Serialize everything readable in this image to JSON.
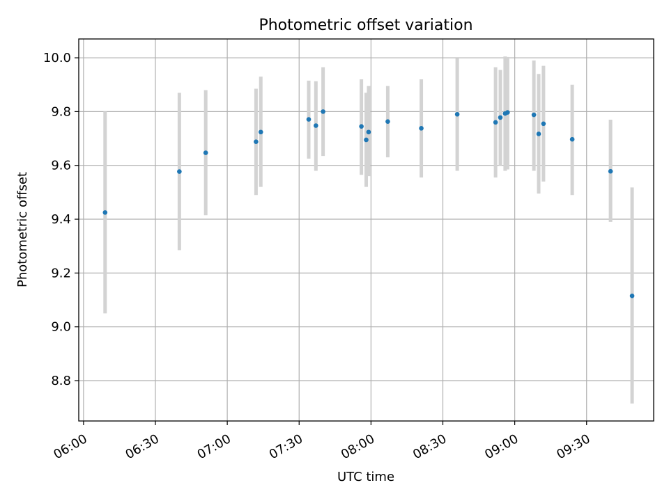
{
  "chart_data": {
    "type": "scatter",
    "title": "Photometric offset variation",
    "xlabel": "UTC time",
    "ylabel": "Photometric offset",
    "x_tick_labels": [
      "06:00",
      "06:30",
      "07:00",
      "07:30",
      "08:00",
      "08:30",
      "09:00",
      "09:30"
    ],
    "x_tick_minutes": [
      360,
      390,
      420,
      450,
      480,
      510,
      540,
      570
    ],
    "y_ticks": [
      8.8,
      9.0,
      9.2,
      9.4,
      9.6,
      9.8,
      10.0
    ],
    "y_tick_labels": [
      "8.8",
      "9.0",
      "9.2",
      "9.4",
      "9.6",
      "9.8",
      "10.0"
    ],
    "xlim": [
      "05:58",
      "09:58"
    ],
    "ylim": [
      8.65,
      10.07
    ],
    "grid": true,
    "legend": "none",
    "marker_color": "#1f77b4",
    "errorbar_color": "#d3d3d3",
    "points": [
      {
        "t": "06:09",
        "y": 9.425,
        "lo": 9.05,
        "hi": 9.8
      },
      {
        "t": "06:40",
        "y": 9.577,
        "lo": 9.285,
        "hi": 9.87
      },
      {
        "t": "06:51",
        "y": 9.647,
        "lo": 9.415,
        "hi": 9.88
      },
      {
        "t": "07:12",
        "y": 9.688,
        "lo": 9.49,
        "hi": 9.885
      },
      {
        "t": "07:14",
        "y": 9.724,
        "lo": 9.52,
        "hi": 9.93
      },
      {
        "t": "07:34",
        "y": 9.771,
        "lo": 9.625,
        "hi": 9.915
      },
      {
        "t": "07:37",
        "y": 9.748,
        "lo": 9.58,
        "hi": 9.913
      },
      {
        "t": "07:40",
        "y": 9.8,
        "lo": 9.635,
        "hi": 9.965
      },
      {
        "t": "07:56",
        "y": 9.745,
        "lo": 9.565,
        "hi": 9.92
      },
      {
        "t": "07:58",
        "y": 9.695,
        "lo": 9.52,
        "hi": 9.87
      },
      {
        "t": "07:59",
        "y": 9.724,
        "lo": 9.56,
        "hi": 9.895
      },
      {
        "t": "08:07",
        "y": 9.763,
        "lo": 9.63,
        "hi": 9.895
      },
      {
        "t": "08:21",
        "y": 9.738,
        "lo": 9.555,
        "hi": 9.92
      },
      {
        "t": "08:36",
        "y": 9.79,
        "lo": 9.58,
        "hi": 9.998
      },
      {
        "t": "08:52",
        "y": 9.76,
        "lo": 9.555,
        "hi": 9.965
      },
      {
        "t": "08:54",
        "y": 9.778,
        "lo": 9.6,
        "hi": 9.955
      },
      {
        "t": "08:56",
        "y": 9.793,
        "lo": 9.58,
        "hi": 10.005
      },
      {
        "t": "08:57",
        "y": 9.797,
        "lo": 9.585,
        "hi": 10.003
      },
      {
        "t": "09:08",
        "y": 9.788,
        "lo": 9.58,
        "hi": 9.99
      },
      {
        "t": "09:10",
        "y": 9.717,
        "lo": 9.495,
        "hi": 9.94
      },
      {
        "t": "09:12",
        "y": 9.755,
        "lo": 9.54,
        "hi": 9.97
      },
      {
        "t": "09:24",
        "y": 9.697,
        "lo": 9.49,
        "hi": 9.9
      },
      {
        "t": "09:40",
        "y": 9.578,
        "lo": 9.39,
        "hi": 9.77
      },
      {
        "t": "09:49",
        "y": 9.115,
        "lo": 8.715,
        "hi": 9.518
      }
    ]
  }
}
